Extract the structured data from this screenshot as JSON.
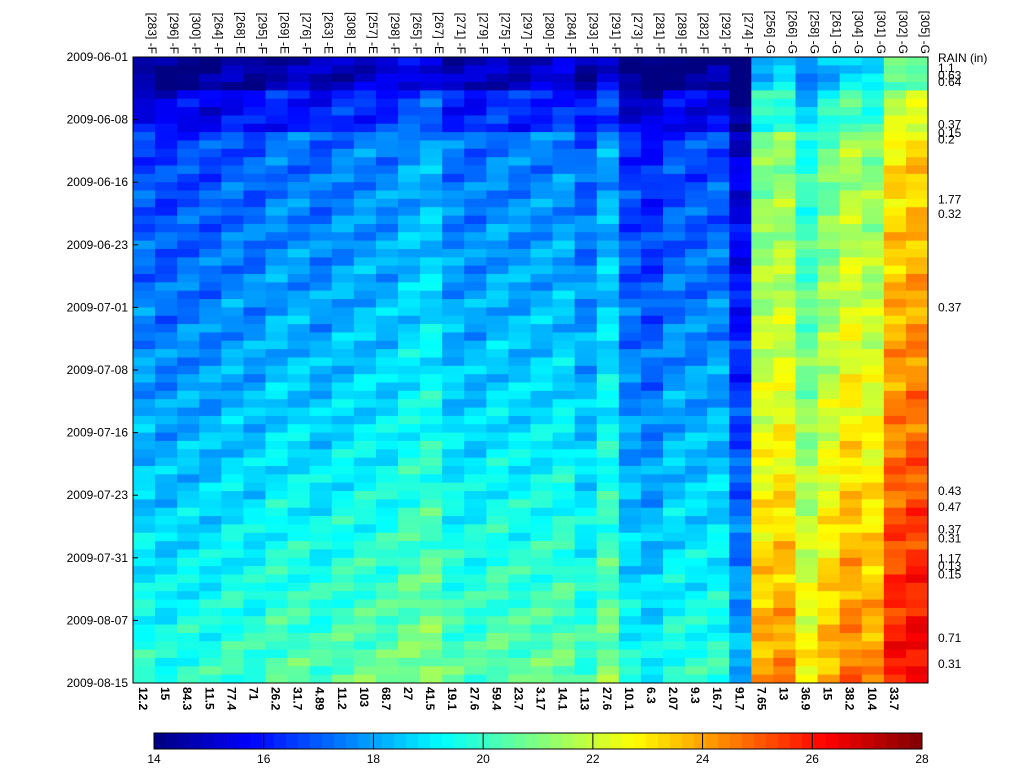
{
  "chart_data": {
    "type": "heatmap",
    "title": "",
    "rain_label": "RAIN (in)",
    "columns": [
      {
        "label": "[283] -F",
        "value": "12.2"
      },
      {
        "label": "[296] -F",
        "value": "15"
      },
      {
        "label": "[300] -F",
        "value": "84.3"
      },
      {
        "label": "[264] -F",
        "value": "11.5"
      },
      {
        "label": "[268] -E",
        "value": "77.4"
      },
      {
        "label": "[295] -F",
        "value": "71"
      },
      {
        "label": "[269] -E",
        "value": "26.2"
      },
      {
        "label": "[276] -F",
        "value": "31.7"
      },
      {
        "label": "[263] -E",
        "value": "4.89"
      },
      {
        "label": "[308] -E",
        "value": "11.2"
      },
      {
        "label": "[257] -E",
        "value": "103"
      },
      {
        "label": "[298] -F",
        "value": "68.7"
      },
      {
        "label": "[265] -F",
        "value": "27"
      },
      {
        "label": "[267] -E",
        "value": "41.5"
      },
      {
        "label": "[271] -F",
        "value": "19.1"
      },
      {
        "label": "[279] -F",
        "value": "27.6"
      },
      {
        "label": "[275] -F",
        "value": "59.4"
      },
      {
        "label": "[297] -F",
        "value": "23.7"
      },
      {
        "label": "[280] -F",
        "value": "3.17"
      },
      {
        "label": "[284] -F",
        "value": "14.1"
      },
      {
        "label": "[293] -F",
        "value": "1.13"
      },
      {
        "label": "[291] -F",
        "value": "27.6"
      },
      {
        "label": "[273] -F",
        "value": "10.1"
      },
      {
        "label": "[281] -F",
        "value": "6.3"
      },
      {
        "label": "[289] -F",
        "value": "2.07"
      },
      {
        "label": "[282] -F",
        "value": "9.3"
      },
      {
        "label": "[292] -F",
        "value": "16.7"
      },
      {
        "label": "[274] -F",
        "value": "91.7"
      },
      {
        "label": "[256] -G",
        "value": "7.65"
      },
      {
        "label": "[266] -G",
        "value": "13"
      },
      {
        "label": "[258] -G",
        "value": "36.9"
      },
      {
        "label": "[261] -G",
        "value": "15"
      },
      {
        "label": "[304] -G",
        "value": "38.2"
      },
      {
        "label": "[301] -G",
        "value": "10.4"
      },
      {
        "label": "[302] -G",
        "value": "33.7"
      },
      {
        "label": "[305] -G",
        "value": ""
      }
    ],
    "date_ticks": [
      {
        "label": "2009-06-01",
        "day": 0
      },
      {
        "label": "2009-06-08",
        "day": 7.5
      },
      {
        "label": "2009-06-16",
        "day": 15
      },
      {
        "label": "2009-06-23",
        "day": 22.5
      },
      {
        "label": "2009-07-01",
        "day": 30
      },
      {
        "label": "2009-07-08",
        "day": 37.5
      },
      {
        "label": "2009-07-16",
        "day": 45
      },
      {
        "label": "2009-07-23",
        "day": 52.5
      },
      {
        "label": "2009-07-31",
        "day": 60
      },
      {
        "label": "2009-08-07",
        "day": 67.5
      },
      {
        "label": "2009-08-15",
        "day": 75
      }
    ],
    "y_range_days": [
      0,
      75
    ],
    "rain_events": [
      {
        "label": "1.1",
        "day": 1.3
      },
      {
        "label": "0.63",
        "day": 2.2
      },
      {
        "label": "0.64",
        "day": 3.0
      },
      {
        "label": "0.37",
        "day": 8.1
      },
      {
        "label": "0.15",
        "day": 9.1
      },
      {
        "label": "0.2",
        "day": 9.9
      },
      {
        "label": "1.77",
        "day": 17.1
      },
      {
        "label": "0.32",
        "day": 18.8
      },
      {
        "label": "0.37",
        "day": 30.0
      },
      {
        "label": "0.43",
        "day": 52.0
      },
      {
        "label": "0.47",
        "day": 53.9
      },
      {
        "label": "0.37",
        "day": 56.6
      },
      {
        "label": "0.31",
        "day": 57.7
      },
      {
        "label": "1.17",
        "day": 60.1
      },
      {
        "label": "0.13",
        "day": 61.0
      },
      {
        "label": "0.15",
        "day": 62.0
      },
      {
        "label": "0.71",
        "day": 69.6
      },
      {
        "label": "0.31",
        "day": 72.7
      }
    ],
    "column_base_values": [
      18.0,
      17.8,
      18.0,
      18.0,
      18.3,
      18.2,
      18.6,
      18.6,
      18.4,
      18.7,
      18.8,
      18.8,
      19.2,
      19.4,
      18.6,
      18.5,
      18.8,
      18.7,
      18.8,
      18.9,
      18.3,
      19.2,
      17.7,
      17.4,
      18.0,
      18.0,
      18.1,
      16.5,
      22.2,
      22.5,
      21.0,
      22.0,
      22.8,
      22.4,
      24.3,
      24.6
    ],
    "colorbar": {
      "min": 14,
      "max": 28,
      "ticks": [
        "14",
        "16",
        "18",
        "20",
        "22",
        "24",
        "26",
        "28"
      ]
    }
  }
}
